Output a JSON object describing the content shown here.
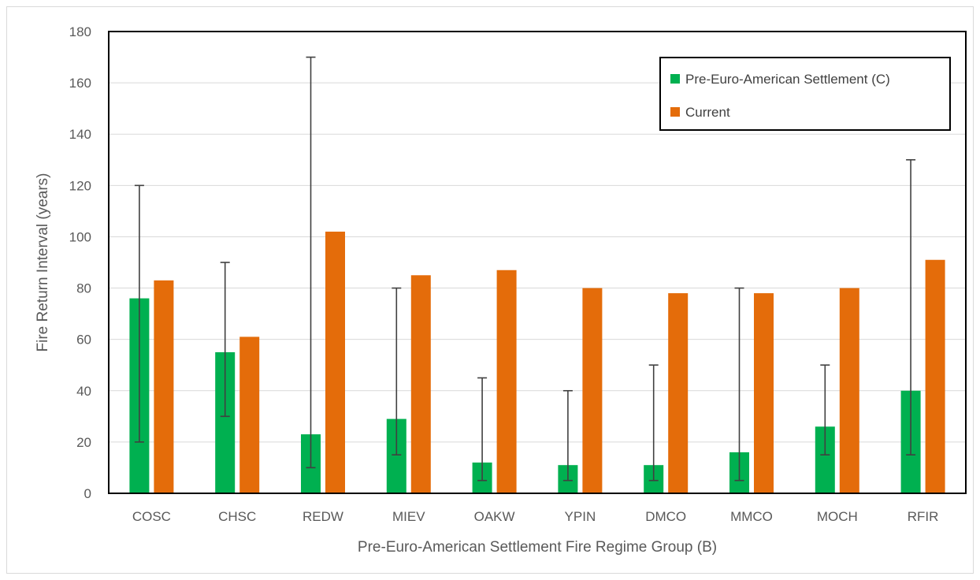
{
  "chart_data": {
    "type": "bar",
    "title": "",
    "xlabel": "Pre-Euro-American Settlement Fire Regime Group (B)",
    "ylabel": "Fire Return Interval (years)",
    "ylim": [
      0,
      180
    ],
    "yticks": [
      0,
      20,
      40,
      60,
      80,
      100,
      120,
      140,
      160,
      180
    ],
    "grid": true,
    "legend_position": "top-right",
    "categories": [
      "COSC",
      "CHSC",
      "REDW",
      "MIEV",
      "OAKW",
      "YPIN",
      "DMCO",
      "MMCO",
      "MOCH",
      "RFIR"
    ],
    "series": [
      {
        "name": "Pre-Euro-American Settlement (C)",
        "color": "#00b050",
        "values": [
          76,
          55,
          23,
          29,
          12,
          11,
          11,
          16,
          26,
          40
        ],
        "error_low": [
          20,
          30,
          10,
          15,
          5,
          5,
          5,
          5,
          15,
          15
        ],
        "error_high": [
          120,
          90,
          170,
          80,
          45,
          40,
          50,
          80,
          50,
          130
        ]
      },
      {
        "name": "Current",
        "color": "#e46c0a",
        "values": [
          83,
          61,
          102,
          85,
          87,
          80,
          78,
          78,
          80,
          91
        ]
      }
    ]
  }
}
